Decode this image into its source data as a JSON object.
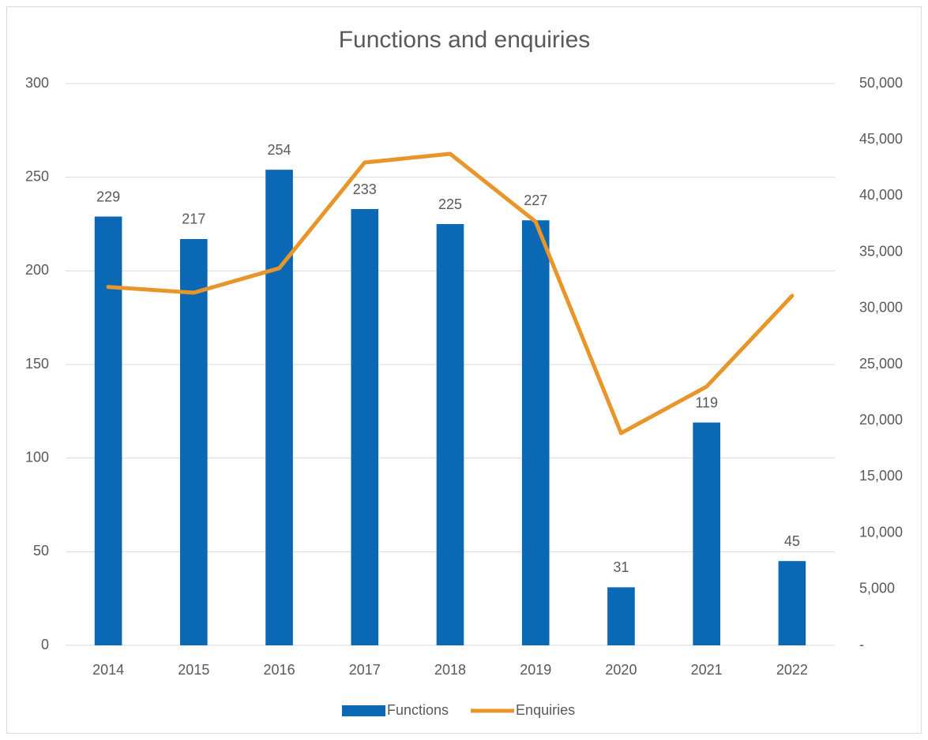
{
  "chart_data": {
    "type": "bar_line",
    "title": "Functions and enquiries",
    "categories": [
      "2014",
      "2015",
      "2016",
      "2017",
      "2018",
      "2019",
      "2020",
      "2021",
      "2022"
    ],
    "series": [
      {
        "name": "Functions",
        "type": "bar",
        "color": "#0a68b4",
        "values": [
          229,
          217,
          254,
          233,
          225,
          227,
          31,
          119,
          45
        ]
      },
      {
        "name": "Enquiries",
        "type": "line",
        "axis": "y2",
        "color": "#e8962a",
        "values": [
          31900,
          31390,
          33570,
          42980,
          43750,
          37710,
          18890,
          23030,
          31110
        ]
      }
    ],
    "ylim": [
      0,
      300
    ],
    "yticks": [
      0,
      50,
      100,
      150,
      200,
      250,
      300
    ],
    "y2lim": [
      0,
      50000
    ],
    "y2ticks": [
      {
        "value": 0,
        "label": "-"
      },
      {
        "value": 5000,
        "label": "5,000"
      },
      {
        "value": 10000,
        "label": "10,000"
      },
      {
        "value": 15000,
        "label": "15,000"
      },
      {
        "value": 20000,
        "label": "20,000"
      },
      {
        "value": 25000,
        "label": "25,000"
      },
      {
        "value": 30000,
        "label": "30,000"
      },
      {
        "value": 35000,
        "label": "35,000"
      },
      {
        "value": 40000,
        "label": "40,000"
      },
      {
        "value": 45000,
        "label": "45,000"
      },
      {
        "value": 50000,
        "label": "50,000"
      }
    ],
    "grid": true,
    "legend": "bottom"
  }
}
